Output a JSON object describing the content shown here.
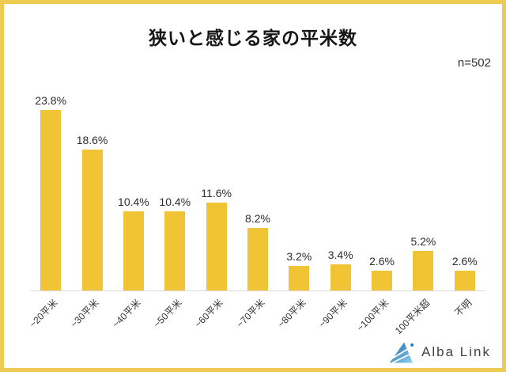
{
  "title": "狭いと感じる家の平米数",
  "sample_size_label": "n=502",
  "chart_data": {
    "type": "bar",
    "title": "狭いと感じる家の平米数",
    "categories": [
      "~20平米",
      "~30平米",
      "~40平米",
      "~50平米",
      "~60平米",
      "~70平米",
      "~80平米",
      "~90平米",
      "~100平米",
      "100平米超",
      "不明"
    ],
    "values": [
      23.8,
      18.6,
      10.4,
      10.4,
      11.6,
      8.2,
      3.2,
      3.4,
      2.6,
      5.2,
      2.6
    ],
    "value_labels": [
      "23.8%",
      "18.6%",
      "10.4%",
      "10.4%",
      "11.6%",
      "8.2%",
      "3.2%",
      "3.4%",
      "2.6%",
      "5.2%",
      "2.6%"
    ],
    "annotation": "n=502",
    "xlabel": "",
    "ylabel": "",
    "ylim": [
      0,
      26
    ],
    "grid": false,
    "legend": "none",
    "x_tick_rotation_deg": 45
  },
  "colors": {
    "bar": "#F0C434",
    "card_border": "#EDCB52",
    "baseline": "#D9D9D9",
    "title_text": "#161616",
    "label_text": "#333333",
    "logo_text": "#404040",
    "logo_blue_dark": "#1C5FA6",
    "logo_blue_light": "#8FD2F0"
  },
  "footer": {
    "logo_text": "Alba Link"
  }
}
